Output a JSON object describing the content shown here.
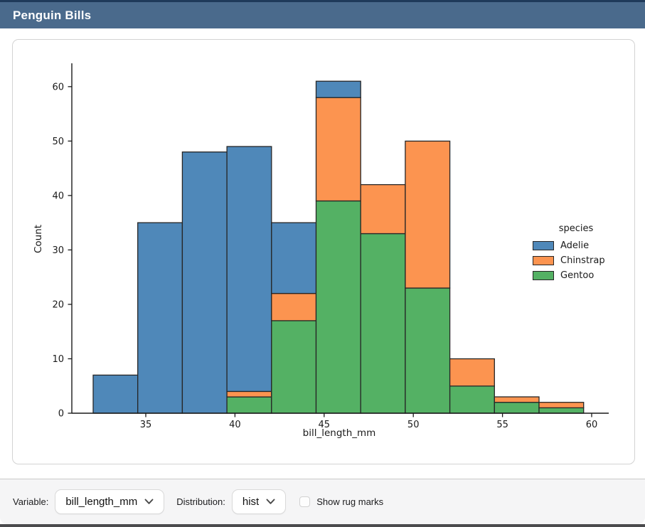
{
  "header": {
    "title": "Penguin Bills"
  },
  "controls": {
    "variable_label": "Variable:",
    "variable_value": "bill_length_mm",
    "distribution_label": "Distribution:",
    "distribution_value": "hist",
    "rug_label": "Show rug marks",
    "rug_checked": false
  },
  "colors": {
    "titlebar": "#4a6a8c",
    "titlebar_top_edge": "#1f3a5a",
    "adelie": "#4f88b9",
    "chinstrap": "#fc9450",
    "gentoo": "#54b164",
    "bar_edge": "#262626",
    "axis": "#1a1a1a"
  },
  "chart_data": {
    "type": "bar",
    "subtype": "stacked-histogram",
    "title": "",
    "xlabel": "bill_length_mm",
    "ylabel": "Count",
    "bin_edges": [
      32.05,
      34.55,
      37.05,
      39.55,
      42.05,
      44.55,
      47.05,
      49.55,
      52.05,
      54.55,
      57.05,
      59.55
    ],
    "series": [
      {
        "name": "Adelie",
        "color": "#4f88b9",
        "values": [
          7,
          35,
          48,
          45,
          13,
          3,
          0,
          0,
          0,
          0,
          0
        ]
      },
      {
        "name": "Chinstrap",
        "color": "#fc9450",
        "values": [
          0,
          0,
          0,
          1,
          5,
          19,
          9,
          27,
          5,
          1,
          1
        ]
      },
      {
        "name": "Gentoo",
        "color": "#54b164",
        "values": [
          0,
          0,
          0,
          3,
          17,
          39,
          33,
          23,
          5,
          2,
          1
        ]
      }
    ],
    "stack_order_bottom_to_top": [
      "Gentoo",
      "Chinstrap",
      "Adelie"
    ],
    "bin_totals": [
      7,
      35,
      48,
      49,
      35,
      61,
      42,
      50,
      10,
      3,
      2
    ],
    "x_ticks": [
      35,
      40,
      45,
      50,
      55,
      60
    ],
    "y_ticks": [
      0,
      10,
      20,
      30,
      40,
      50,
      60
    ],
    "xlim": [
      30.85,
      60.95
    ],
    "ylim": [
      0,
      64.3
    ],
    "grid": false,
    "legend": {
      "title": "species",
      "position": "center-right-outside"
    }
  }
}
